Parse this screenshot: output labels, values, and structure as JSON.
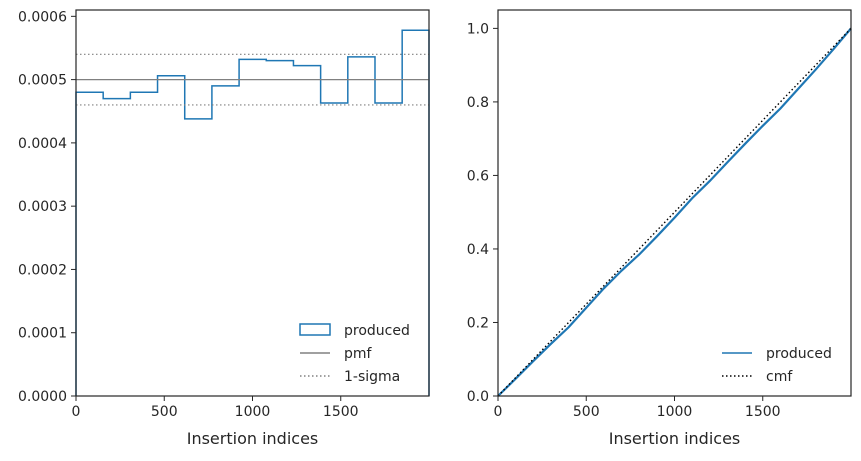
{
  "chart_data": [
    {
      "type": "histogram-step",
      "xlabel": "Insertion indices",
      "ylabel": "",
      "xlim": [
        0,
        2000
      ],
      "ylim": [
        0,
        0.00061
      ],
      "xticks": [
        0,
        500,
        1000,
        1500
      ],
      "xtick_labels": [
        "0",
        "500",
        "1000",
        "1500"
      ],
      "yticks": [
        0,
        0.0001,
        0.0002,
        0.0003,
        0.0004,
        0.0005,
        0.0006
      ],
      "ytick_labels": [
        "0.0000",
        "0.0001",
        "0.0002",
        "0.0003",
        "0.0004",
        "0.0005",
        "0.0006"
      ],
      "bin_edges": [
        0,
        154,
        308,
        462,
        616,
        770,
        924,
        1078,
        1232,
        1386,
        1540,
        1694,
        1848,
        2000
      ],
      "series": [
        {
          "name": "produced",
          "kind": "step",
          "color": "#1f77b4",
          "values": [
            0.00048,
            0.00047,
            0.00048,
            0.000506,
            0.000438,
            0.00049,
            0.000532,
            0.00053,
            0.000522,
            0.000463,
            0.000536,
            0.000463,
            0.000578
          ]
        },
        {
          "name": "pmf",
          "kind": "hline",
          "color": "#808080",
          "value": 0.0005
        },
        {
          "name": "1-sigma",
          "kind": "hline-dotted",
          "color": "#808080",
          "values": [
            0.00054,
            0.00046
          ]
        }
      ],
      "legend": {
        "position": "lower-right",
        "entries": [
          "produced",
          "pmf",
          "1-sigma"
        ]
      }
    },
    {
      "type": "line",
      "xlabel": "Insertion indices",
      "ylabel": "",
      "xlim": [
        0,
        2000
      ],
      "ylim": [
        0,
        1.05
      ],
      "xticks": [
        0,
        500,
        1000,
        1500
      ],
      "xtick_labels": [
        "0",
        "500",
        "1000",
        "1500"
      ],
      "yticks": [
        0,
        0.2,
        0.4,
        0.6,
        0.8,
        1.0
      ],
      "ytick_labels": [
        "0.0",
        "0.2",
        "0.4",
        "0.6",
        "0.8",
        "1.0"
      ],
      "series": [
        {
          "name": "produced",
          "kind": "line",
          "color": "#1f77b4",
          "x": [
            0,
            100,
            200,
            300,
            400,
            500,
            600,
            700,
            800,
            900,
            1000,
            1100,
            1200,
            1300,
            1400,
            1500,
            1600,
            1700,
            1800,
            1900,
            2000
          ],
          "y": [
            0,
            0.047,
            0.095,
            0.142,
            0.187,
            0.24,
            0.293,
            0.341,
            0.385,
            0.434,
            0.485,
            0.538,
            0.585,
            0.636,
            0.686,
            0.735,
            0.782,
            0.835,
            0.888,
            0.943,
            1.0
          ]
        },
        {
          "name": "cmf",
          "kind": "line-dotted",
          "color": "#000000",
          "x": [
            0,
            2000
          ],
          "y": [
            0,
            1.0
          ]
        }
      ],
      "legend": {
        "position": "lower-right",
        "entries": [
          "produced",
          "cmf"
        ]
      }
    }
  ]
}
